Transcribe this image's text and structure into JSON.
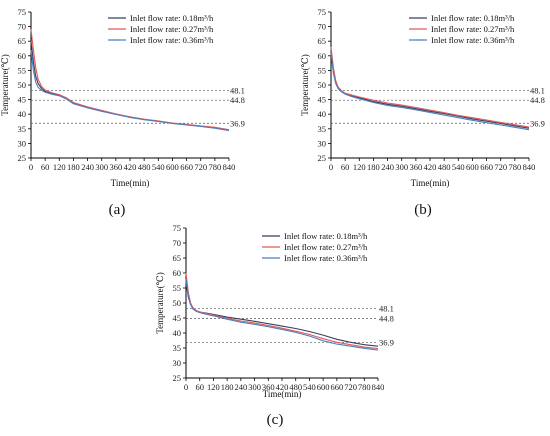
{
  "figure": {
    "panels": [
      "(a)",
      "(b)",
      "(c)"
    ]
  },
  "chart_data": [
    {
      "type": "line",
      "panel_label": "(a)",
      "xlabel": "Time(min)",
      "ylabel": "Temperature(℃)",
      "xlim": [
        0,
        840
      ],
      "ylim": [
        25,
        75
      ],
      "xticks": [
        0,
        60,
        120,
        180,
        240,
        300,
        360,
        420,
        480,
        540,
        600,
        660,
        720,
        780,
        840
      ],
      "yticks": [
        25,
        30,
        35,
        40,
        45,
        50,
        55,
        60,
        65,
        70,
        75
      ],
      "reference_lines": [
        48.1,
        44.8,
        36.9
      ],
      "reference_labels": [
        "48.1",
        "44.8",
        "36.9"
      ],
      "legend_position": "top-right",
      "grid": false,
      "series": [
        {
          "name": "Inlet flow rate: 0.18m³/h",
          "color": "#3a3f5c",
          "x": [
            0,
            10,
            20,
            30,
            45,
            60,
            90,
            120,
            150,
            180,
            240,
            300,
            360,
            420,
            480,
            540,
            600,
            660,
            720,
            780,
            840
          ],
          "y": [
            65,
            58,
            53,
            50.5,
            48.8,
            47.8,
            47,
            46.5,
            45.4,
            43.8,
            42.4,
            41.2,
            40,
            39,
            38.2,
            37.6,
            36.9,
            36.4,
            35.9,
            35.4,
            34.6
          ]
        },
        {
          "name": "Inlet flow rate: 0.27m³/h",
          "color": "#e05a5a",
          "x": [
            0,
            10,
            20,
            30,
            45,
            60,
            90,
            120,
            150,
            180,
            240,
            300,
            360,
            420,
            480,
            540,
            600,
            660,
            720,
            780,
            840
          ],
          "y": [
            69,
            62,
            56,
            52,
            49.5,
            48.3,
            47.3,
            46.7,
            45.6,
            44,
            42.5,
            41.3,
            40.1,
            39.1,
            38.3,
            37.7,
            37,
            36.5,
            36,
            35.5,
            34.7
          ]
        },
        {
          "name": "Inlet flow rate: 0.36m³/h",
          "color": "#4a7fc0",
          "x": [
            0,
            10,
            20,
            30,
            45,
            60,
            90,
            120,
            150,
            180,
            240,
            300,
            360,
            420,
            480,
            540,
            600,
            660,
            720,
            780,
            840
          ],
          "y": [
            62,
            55,
            51,
            49.2,
            48.2,
            47.5,
            46.8,
            46.3,
            45.2,
            43.6,
            42.2,
            41,
            39.9,
            38.9,
            38.1,
            37.5,
            36.8,
            36.3,
            35.8,
            35.2,
            34.4
          ]
        }
      ]
    },
    {
      "type": "line",
      "panel_label": "(b)",
      "xlabel": "Time(min)",
      "ylabel": "Temperature(℃)",
      "xlim": [
        0,
        840
      ],
      "ylim": [
        25,
        75
      ],
      "xticks": [
        0,
        60,
        120,
        180,
        240,
        300,
        360,
        420,
        480,
        540,
        600,
        660,
        720,
        780,
        840
      ],
      "yticks": [
        25,
        30,
        35,
        40,
        45,
        50,
        55,
        60,
        65,
        70,
        75
      ],
      "reference_lines": [
        48.1,
        44.8,
        36.9
      ],
      "reference_labels": [
        "48.1",
        "44.8",
        "36.9"
      ],
      "legend_position": "top-right",
      "grid": false,
      "series": [
        {
          "name": "Inlet flow rate: 0.18m³/h",
          "color": "#3a3f5c",
          "x": [
            0,
            10,
            20,
            30,
            45,
            60,
            90,
            120,
            180,
            240,
            300,
            360,
            420,
            480,
            540,
            600,
            660,
            720,
            780,
            840
          ],
          "y": [
            62,
            55,
            51,
            49,
            47.8,
            47,
            46.2,
            45.6,
            44.3,
            43.4,
            42.7,
            41.9,
            41,
            40.2,
            39.3,
            38.4,
            37.6,
            36.8,
            36,
            35.2
          ]
        },
        {
          "name": "Inlet flow rate: 0.27m³/h",
          "color": "#e05a5a",
          "x": [
            0,
            10,
            20,
            30,
            45,
            60,
            90,
            120,
            180,
            240,
            300,
            360,
            420,
            480,
            540,
            600,
            660,
            720,
            780,
            840
          ],
          "y": [
            63,
            56,
            51.5,
            49.3,
            48,
            47.2,
            46.5,
            45.9,
            44.8,
            43.8,
            43.1,
            42.3,
            41.4,
            40.5,
            39.6,
            38.8,
            38,
            37.2,
            36.4,
            35.6
          ]
        },
        {
          "name": "Inlet flow rate: 0.36m³/h",
          "color": "#4a7fc0",
          "x": [
            0,
            10,
            20,
            30,
            45,
            60,
            90,
            120,
            180,
            240,
            300,
            360,
            420,
            480,
            540,
            600,
            660,
            720,
            780,
            840
          ],
          "y": [
            61,
            54,
            50.5,
            48.8,
            47.6,
            46.9,
            46,
            45.3,
            44,
            43,
            42.3,
            41.5,
            40.6,
            39.7,
            38.8,
            37.9,
            37.1,
            36.3,
            35.5,
            34.7
          ]
        }
      ]
    },
    {
      "type": "line",
      "panel_label": "(c)",
      "xlabel": "Time(min)",
      "ylabel": "Temperature(℃)",
      "xlim": [
        0,
        840
      ],
      "ylim": [
        25,
        75
      ],
      "xticks": [
        0,
        60,
        120,
        180,
        240,
        300,
        360,
        420,
        480,
        540,
        600,
        660,
        720,
        780,
        840
      ],
      "yticks": [
        25,
        30,
        35,
        40,
        45,
        50,
        55,
        60,
        65,
        70,
        75
      ],
      "reference_lines": [
        48.1,
        44.8,
        36.9
      ],
      "reference_labels": [
        "48.1",
        "44.8",
        "36.9"
      ],
      "legend_position": "top-right",
      "grid": false,
      "series": [
        {
          "name": "Inlet flow rate: 0.18m³/h",
          "color": "#3a3f5c",
          "x": [
            0,
            10,
            20,
            30,
            45,
            60,
            90,
            120,
            180,
            240,
            300,
            360,
            420,
            480,
            540,
            600,
            660,
            720,
            780,
            840
          ],
          "y": [
            57,
            52,
            49.5,
            48.2,
            47.4,
            47,
            46.6,
            46.2,
            45.3,
            44.6,
            43.9,
            43.1,
            42.3,
            41.5,
            40.5,
            39.3,
            37.9,
            36.9,
            36.1,
            35.6
          ]
        },
        {
          "name": "Inlet flow rate: 0.27m³/h",
          "color": "#e05a5a",
          "x": [
            0,
            10,
            20,
            30,
            45,
            60,
            90,
            120,
            180,
            240,
            300,
            360,
            420,
            480,
            540,
            600,
            660,
            720,
            780,
            840
          ],
          "y": [
            60,
            53.5,
            50,
            48.5,
            47.5,
            47,
            46.5,
            46,
            44.9,
            44,
            43.3,
            42.5,
            41.6,
            40.6,
            39.5,
            38.1,
            36.9,
            36.1,
            35.3,
            34.8
          ]
        },
        {
          "name": "Inlet flow rate: 0.36m³/h",
          "color": "#4a7fc0",
          "x": [
            0,
            10,
            20,
            30,
            45,
            60,
            90,
            120,
            180,
            240,
            300,
            360,
            420,
            480,
            540,
            600,
            660,
            720,
            780,
            840
          ],
          "y": [
            58,
            52.5,
            49.5,
            48,
            47.2,
            46.8,
            46.2,
            45.7,
            44.6,
            43.6,
            42.9,
            42.1,
            41.2,
            40.2,
            39,
            37.4,
            36.3,
            35.6,
            34.9,
            34.3
          ]
        }
      ]
    }
  ]
}
